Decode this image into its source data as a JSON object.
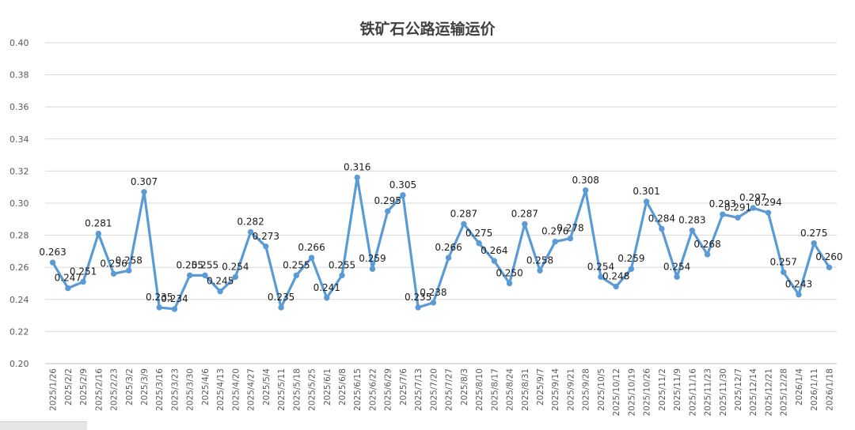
{
  "chart_data": {
    "type": "line",
    "title": "铁矿石公路运输运价",
    "xlabel": "",
    "ylabel": "",
    "ylim": [
      0.2,
      0.4
    ],
    "yticks": [
      "0.20",
      "0.22",
      "0.24",
      "0.26",
      "0.28",
      "0.30",
      "0.32",
      "0.34",
      "0.36",
      "0.38",
      "0.40"
    ],
    "grid": true,
    "categories": [
      "2025/1/26",
      "2025/2/2",
      "2025/2/9",
      "2025/2/16",
      "2025/2/23",
      "2025/3/2",
      "2025/3/9",
      "2025/3/16",
      "2025/3/23",
      "2025/3/30",
      "2025/4/6",
      "2025/4/13",
      "2025/4/20",
      "2025/4/27",
      "2025/5/4",
      "2025/5/11",
      "2025/5/18",
      "2025/5/25",
      "2025/6/1",
      "2025/6/8",
      "2025/6/15",
      "2025/6/22",
      "2025/6/29",
      "2025/7/6",
      "2025/7/13",
      "2025/7/20",
      "2025/7/27",
      "2025/8/3",
      "2025/8/10",
      "2025/8/17",
      "2025/8/24",
      "2025/8/31",
      "2025/9/7",
      "2025/9/14",
      "2025/9/21",
      "2025/9/28",
      "2025/10/5",
      "2025/10/12",
      "2025/10/19",
      "2025/10/26",
      "2025/11/2",
      "2025/11/9",
      "2025/11/16",
      "2025/11/23",
      "2025/11/30",
      "2025/12/7",
      "2025/12/14",
      "2025/12/21",
      "2025/12/28",
      "2026/1/4",
      "2026/1/11",
      "2026/1/18"
    ],
    "series": [
      {
        "color": "#5b9bd5",
        "values": [
          0.263,
          0.247,
          0.251,
          0.281,
          0.256,
          0.258,
          0.307,
          0.235,
          0.234,
          0.255,
          0.255,
          0.245,
          0.254,
          0.282,
          0.273,
          0.235,
          0.255,
          0.266,
          0.241,
          0.255,
          0.316,
          0.259,
          0.295,
          0.305,
          0.235,
          0.238,
          0.266,
          0.287,
          0.275,
          0.264,
          0.25,
          0.287,
          0.258,
          0.276,
          0.278,
          0.308,
          0.254,
          0.248,
          0.259,
          0.301,
          0.284,
          0.254,
          0.283,
          0.268,
          0.293,
          0.291,
          0.297,
          0.294,
          0.257,
          0.243,
          0.275,
          0.26
        ],
        "labels": [
          "0.263",
          "0.247",
          "0.251",
          "0.281",
          "0.256",
          "0.258",
          "0.307",
          "0.235",
          "0.234",
          "0.255",
          "0.255",
          "0.245",
          "0.254",
          "0.282",
          "0.273",
          "0.235",
          "0.255",
          "0.266",
          "0.241",
          "0.255",
          "0.316",
          "0.259",
          "0.295",
          "0.305",
          "0.235",
          "0.238",
          "0.266",
          "0.287",
          "0.275",
          "0.264",
          "0.250",
          "0.287",
          "0.258",
          "0.276",
          "0.278",
          "0.308",
          "0.254",
          "0.248",
          "0.259",
          "0.301",
          "0.284",
          "0.254",
          "0.283",
          "0.268",
          "0.293",
          "0.291",
          "0.297",
          "0.294",
          "0.257",
          "0.243",
          "0.275",
          "0.260"
        ]
      }
    ]
  }
}
